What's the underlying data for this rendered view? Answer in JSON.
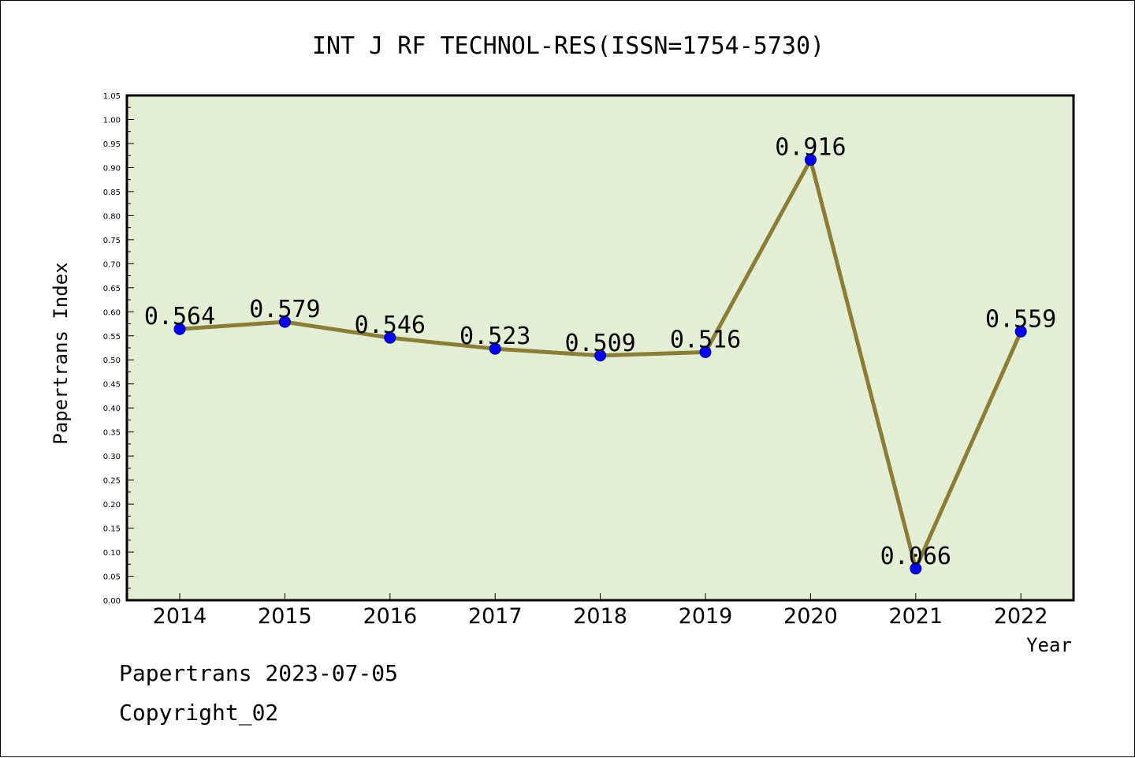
{
  "chart_data": {
    "type": "line",
    "title": "INT J RF TECHNOL-RES(ISSN=1754-5730)",
    "xlabel": "Year",
    "ylabel": "Papertrans Index",
    "categories": [
      "2014",
      "2015",
      "2016",
      "2017",
      "2018",
      "2019",
      "2020",
      "2021",
      "2022"
    ],
    "values": [
      0.564,
      0.579,
      0.546,
      0.523,
      0.509,
      0.516,
      0.916,
      0.066,
      0.559
    ],
    "value_labels": [
      "0.564",
      "0.579",
      "0.546",
      "0.523",
      "0.509",
      "0.516",
      "0.916",
      "0.066",
      "0.559"
    ],
    "ylim": [
      0,
      1.05
    ],
    "ytick_labels": [
      "0.00",
      "0.05",
      "0.10",
      "0.15",
      "0.20",
      "0.25",
      "0.30",
      "0.35",
      "0.40",
      "0.45",
      "0.50",
      "0.55",
      "0.60",
      "0.65",
      "0.70",
      "0.75",
      "0.80",
      "0.85",
      "0.90",
      "0.95",
      "1.00",
      "1.05"
    ],
    "grid": false,
    "colors": {
      "plot_background": "#e2efd5",
      "line": "#8b7d35",
      "marker": "#0000ff"
    }
  },
  "footer": {
    "line1": "Papertrans 2023-07-05",
    "line2": "Copyright_02"
  }
}
